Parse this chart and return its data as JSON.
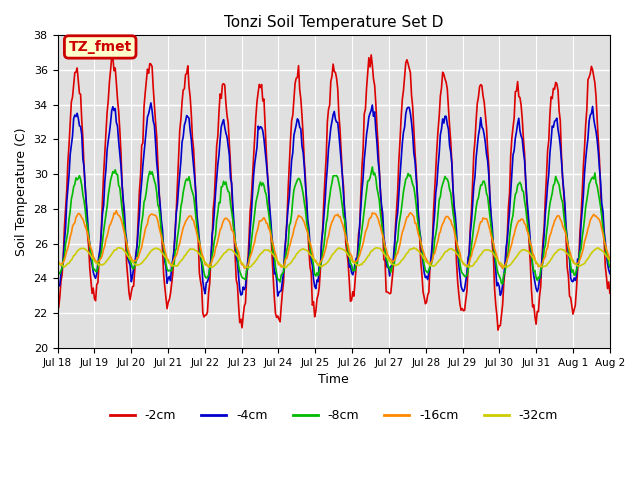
{
  "title": "Tonzi Soil Temperature Set D",
  "xlabel": "Time",
  "ylabel": "Soil Temperature (C)",
  "ylim": [
    20,
    38
  ],
  "yticks": [
    20,
    22,
    24,
    26,
    28,
    30,
    32,
    34,
    36,
    38
  ],
  "xtick_labels": [
    "Jul 18",
    "Jul 19",
    "Jul 20",
    "Jul 21",
    "Jul 22",
    "Jul 23",
    "Jul 24",
    "Jul 25",
    "Jul 26",
    "Jul 27",
    "Jul 28",
    "Jul 29",
    "Jul 30",
    "Jul 31",
    "Aug 1",
    "Aug 2"
  ],
  "annotation_text": "TZ_fmet",
  "annotation_facecolor": "#ffffcc",
  "annotation_edgecolor": "#cc0000",
  "bg_color": "#e0e0e0",
  "lines": [
    {
      "label": "-2cm",
      "color": "#dd0000",
      "amplitude": 6.8,
      "mean": 29.0,
      "phase": 0.0
    },
    {
      "label": "-4cm",
      "color": "#0000cc",
      "amplitude": 4.8,
      "mean": 28.5,
      "phase": 0.12
    },
    {
      "label": "-8cm",
      "color": "#00bb00",
      "amplitude": 2.8,
      "mean": 27.0,
      "phase": 0.28
    },
    {
      "label": "-16cm",
      "color": "#ff8800",
      "amplitude": 1.4,
      "mean": 26.2,
      "phase": 0.55
    },
    {
      "label": "-32cm",
      "color": "#cccc00",
      "amplitude": 0.5,
      "mean": 25.2,
      "phase": 1.1
    }
  ],
  "n_points": 480,
  "days": 15
}
